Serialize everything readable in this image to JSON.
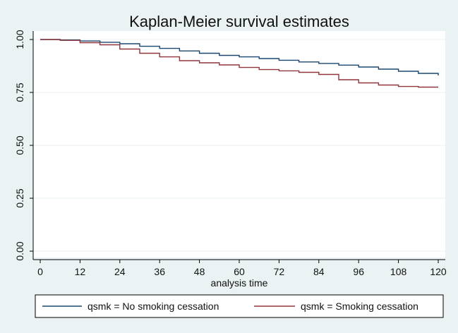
{
  "chart_data": {
    "type": "line",
    "title": "Kaplan-Meier survival estimates",
    "xlabel": "analysis time",
    "ylabel": "",
    "xlim": [
      0,
      120
    ],
    "ylim": [
      0,
      1
    ],
    "x_ticks": [
      0,
      12,
      24,
      36,
      48,
      60,
      72,
      84,
      96,
      108,
      120
    ],
    "x_tick_labels": [
      "0",
      "12",
      "24",
      "36",
      "48",
      "60",
      "72",
      "84",
      "96",
      "108",
      "120"
    ],
    "y_ticks": [
      0,
      0.25,
      0.5,
      0.75,
      1.0
    ],
    "y_tick_labels": [
      "0.00",
      "0.25",
      "0.50",
      "0.75",
      "1.00"
    ],
    "grid": true,
    "legend_position": "bottom",
    "colors": {
      "background": "#eaf2f3",
      "plot_background": "#ffffff",
      "grid": "#eaf2f3"
    },
    "series": [
      {
        "name": "qsmk = No smoking cessation",
        "color": "#1a476f",
        "x": [
          0,
          6,
          12,
          18,
          24,
          30,
          36,
          42,
          48,
          54,
          60,
          66,
          72,
          78,
          84,
          90,
          96,
          102,
          108,
          114,
          120
        ],
        "y": [
          1.0,
          0.998,
          0.993,
          0.987,
          0.98,
          0.968,
          0.958,
          0.946,
          0.935,
          0.925,
          0.918,
          0.91,
          0.902,
          0.894,
          0.887,
          0.879,
          0.87,
          0.86,
          0.85,
          0.84,
          0.83
        ]
      },
      {
        "name": "qsmk = Smoking cessation",
        "color": "#90353b",
        "x": [
          0,
          6,
          12,
          18,
          24,
          30,
          36,
          42,
          48,
          54,
          60,
          66,
          72,
          78,
          84,
          90,
          96,
          102,
          108,
          114,
          120
        ],
        "y": [
          1.0,
          0.996,
          0.985,
          0.975,
          0.955,
          0.935,
          0.918,
          0.9,
          0.89,
          0.88,
          0.868,
          0.858,
          0.852,
          0.845,
          0.835,
          0.81,
          0.795,
          0.785,
          0.778,
          0.775,
          0.775
        ]
      }
    ]
  }
}
